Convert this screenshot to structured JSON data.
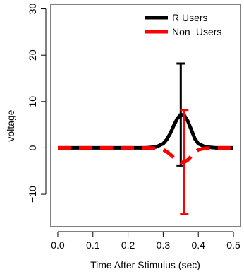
{
  "chart_data": {
    "type": "line",
    "title": "",
    "xlabel": "Time After Stimulus (sec)",
    "ylabel": "voltage",
    "xlim": [
      -0.02,
      0.52
    ],
    "ylim": [
      -17,
      31
    ],
    "x_ticks": [
      0.0,
      0.1,
      0.2,
      0.3,
      0.4,
      0.5
    ],
    "x_tick_labels": [
      "0.0",
      "0.1",
      "0.2",
      "0.3",
      "0.4",
      "0.5"
    ],
    "y_ticks": [
      -10,
      0,
      10,
      20,
      30
    ],
    "y_tick_labels": [
      "−10",
      "0",
      "10",
      "20",
      "30"
    ],
    "grid": false,
    "legend_position": "top-right",
    "series": [
      {
        "name": "R Users",
        "color": "#000000",
        "line_style": "solid",
        "x": [
          0.0,
          0.05,
          0.1,
          0.15,
          0.2,
          0.25,
          0.28,
          0.3,
          0.31,
          0.32,
          0.33,
          0.34,
          0.35,
          0.36,
          0.37,
          0.38,
          0.39,
          0.4,
          0.42,
          0.45,
          0.5
        ],
        "y": [
          0,
          0,
          0,
          0,
          0,
          0,
          0.2,
          0.9,
          1.8,
          3.1,
          4.8,
          6.3,
          7.2,
          7.0,
          5.8,
          3.9,
          2.0,
          0.9,
          0.2,
          0,
          0
        ],
        "error_bar": {
          "x": 0.35,
          "center": 7.2,
          "upper": 18.2,
          "lower": -3.8
        }
      },
      {
        "name": "Non−Users",
        "color": "#ff0000",
        "line_style": "dashed",
        "x": [
          0.0,
          0.05,
          0.1,
          0.15,
          0.2,
          0.25,
          0.28,
          0.3,
          0.31,
          0.32,
          0.33,
          0.34,
          0.35,
          0.36,
          0.37,
          0.38,
          0.39,
          0.4,
          0.42,
          0.45,
          0.5
        ],
        "y": [
          0,
          0,
          0,
          0,
          0,
          0,
          -0.1,
          -0.4,
          -0.8,
          -1.4,
          -2.1,
          -2.8,
          -3.1,
          -3.1,
          -2.6,
          -1.8,
          -1.0,
          -0.4,
          -0.1,
          0,
          0
        ],
        "error_bar": {
          "x": 0.36,
          "center": -3.1,
          "upper": 8.2,
          "lower": -14.2
        }
      }
    ]
  }
}
